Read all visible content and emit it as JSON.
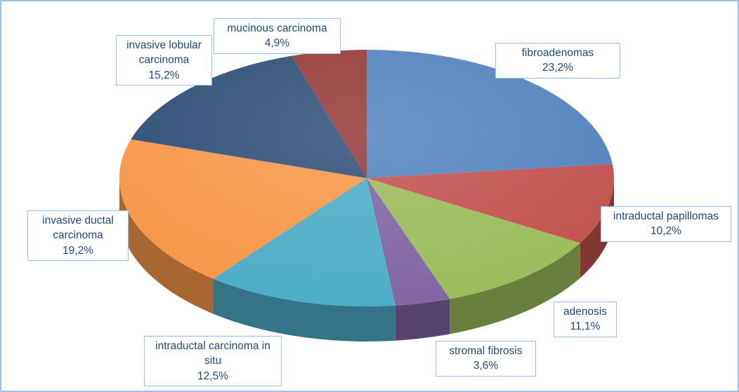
{
  "chart_data": {
    "type": "pie",
    "style": "3d-pie",
    "title": "",
    "legend": "none",
    "unit": "%",
    "direction": "clockwise",
    "start_angle_deg": 0,
    "background": "#FFFFFF",
    "chart_border_color": "#9CC3E5",
    "label_border_color": "#9CC3E5",
    "label_text_color": "#1F497D",
    "slices": [
      {
        "label": "fibroadenomas",
        "value": 23.2,
        "value_label": "23,2%",
        "color": "#4F81BD"
      },
      {
        "label": "intraductal papillomas",
        "value": 10.2,
        "value_label": "10,2%",
        "color": "#C0504D"
      },
      {
        "label": "adenosis",
        "value": 11.1,
        "value_label": "11,1%",
        "color": "#9BBB59"
      },
      {
        "label": "stromal fibrosis",
        "value": 3.6,
        "value_label": "3,6%",
        "color": "#8064A2"
      },
      {
        "label": "intraductal carcinoma in situ",
        "value": 12.5,
        "value_label": "12,5%",
        "color": "#4BACC6"
      },
      {
        "label": "invasive ductal carcinoma",
        "value": 19.2,
        "value_label": "19,2%",
        "color": "#F79646"
      },
      {
        "label": "invasive lobular carcinoma",
        "value": 15.2,
        "value_label": "15,2%",
        "color": "#2C4D75"
      },
      {
        "label": "mucinous carcinoma",
        "value": 4.9,
        "value_label": "4,9%",
        "color": "#943735"
      }
    ]
  }
}
